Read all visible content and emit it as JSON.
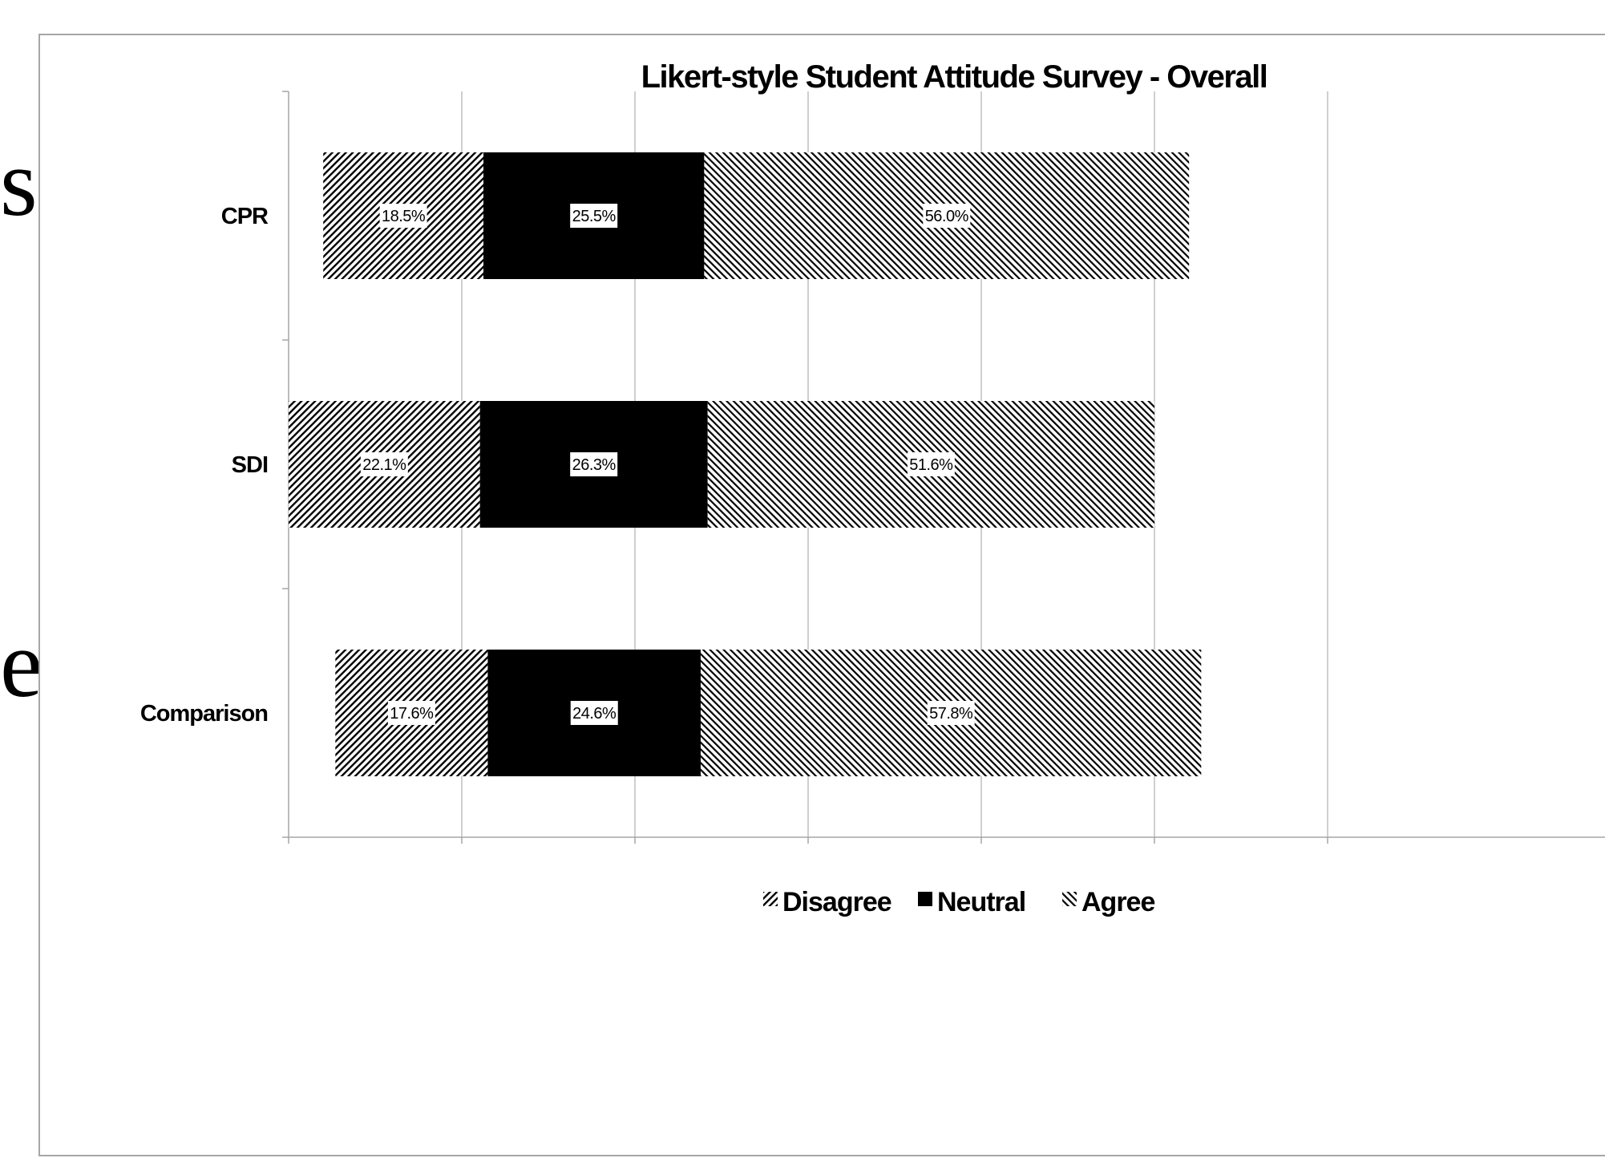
{
  "slide_fragments": {
    "top": "s’",
    "middle": "e"
  },
  "chart_data": {
    "type": "bar",
    "orientation": "horizontal",
    "stacked": true,
    "title": "Likert-style Student Attitude Survey - Overall",
    "categories": [
      "CPR",
      "SDI",
      "Comparison"
    ],
    "series": [
      {
        "name": "Disagree",
        "values": [
          18.5,
          22.1,
          17.6
        ],
        "labels": [
          "18.5%",
          "22.1%",
          "17.6%"
        ],
        "fill": "hatch-forward"
      },
      {
        "name": "Neutral",
        "values": [
          25.5,
          26.3,
          24.6
        ],
        "labels": [
          "25.5%",
          "26.3%",
          "24.6%"
        ],
        "fill": "solid-black"
      },
      {
        "name": "Agree",
        "values": [
          56.0,
          51.6,
          57.8
        ],
        "labels": [
          "56.0%",
          "51.6%",
          "57.8%"
        ],
        "fill": "hatch-back"
      }
    ],
    "diverging_offsets": [
      4.0,
      0.0,
      5.4
    ],
    "xlim": [
      0,
      120
    ],
    "x_gridline_step": 20,
    "x_tick_labels_shown": false,
    "grid": true,
    "legend": "bottom",
    "colors": {
      "ink": "#000000",
      "grid": "#bfbfbf",
      "axis": "#a6a6a6",
      "label_bg": "#ffffff"
    }
  }
}
